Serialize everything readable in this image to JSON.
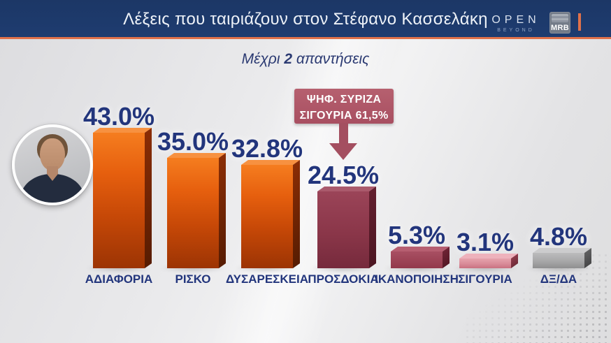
{
  "header": {
    "title": "Λέξεις που ταιριάζουν στον Στέφανο Κασσελάκη",
    "channel": {
      "name": "OPEN",
      "tagline": "BEYOND"
    },
    "agency": {
      "name": "MRB"
    },
    "colors": {
      "bar_bg": "#1d3a6c",
      "accent": "#e0714a",
      "title_text": "#eef2f8"
    }
  },
  "subtitle": {
    "prefix": "Μέχρι ",
    "count": "2",
    "suffix": " απαντήσεις"
  },
  "callout": {
    "line1": "ΨΗΦ. ΣΥΡΙΖΑ",
    "line2": "ΣΙΓΟΥΡΙΑ 61,5%",
    "color": "#b25b6b",
    "points_to": "ΠΡΟΣΔΟΚΙΑ"
  },
  "chart_data": {
    "type": "bar",
    "title": "Λέξεις που ταιριάζουν στον Στέφανο Κασσελάκη",
    "subtitle": "Μέχρι 2 απαντήσεις",
    "categories": [
      "ΑΔΙΑΦΟΡΙΑ",
      "ΡΙΣΚΟ",
      "ΔΥΣΑΡΕΣΚΕΙΑ",
      "ΠΡΟΣΔΟΚΙΑ",
      "ΙΚΑΝΟΠΟΙΗΣΗ",
      "ΣΙΓΟΥΡΙΑ",
      "ΔΞ/ΔΑ"
    ],
    "values": [
      43.0,
      35.0,
      32.8,
      24.5,
      5.3,
      3.1,
      4.8
    ],
    "value_labels": [
      "43.0%",
      "35.0%",
      "32.8%",
      "24.5%",
      "5.3%",
      "3.1%",
      "4.8%"
    ],
    "bar_color_keys": [
      "orange",
      "orange",
      "orange",
      "maroon",
      "rose",
      "pink",
      "gray"
    ],
    "bar_colors_hex": {
      "orange": "#d9570c",
      "maroon": "#8a3649",
      "rose": "#a84f62",
      "pink": "#d98b98",
      "gray": "#a7a7a8"
    },
    "annotation": {
      "text": "ΨΗΦ. ΣΥΡΙΖΑ ΣΙΓΟΥΡΙΑ 61,5%",
      "points_to": "ΠΡΟΣΔΟΚΙΑ"
    },
    "xlabel": "",
    "ylabel": "",
    "ylim": [
      0,
      50
    ],
    "grid": false,
    "legend": false
  }
}
